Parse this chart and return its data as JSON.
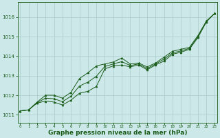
{
  "x": [
    0,
    1,
    2,
    3,
    4,
    5,
    6,
    7,
    8,
    9,
    10,
    11,
    12,
    13,
    14,
    15,
    16,
    17,
    18,
    19,
    20,
    21,
    22,
    23
  ],
  "line_bottom": [
    1011.2,
    1011.25,
    1011.6,
    1011.7,
    1011.65,
    1011.5,
    1011.75,
    1012.1,
    1012.2,
    1012.45,
    1013.35,
    1013.5,
    1013.55,
    1013.45,
    1013.55,
    1013.3,
    1013.55,
    1013.75,
    1014.1,
    1014.2,
    1014.35,
    1014.95,
    1015.75,
    1016.2
  ],
  "line_top": [
    1011.2,
    1011.25,
    1011.65,
    1012.0,
    1012.0,
    1011.85,
    1012.15,
    1012.85,
    1013.15,
    1013.5,
    1013.6,
    1013.7,
    1013.9,
    1013.6,
    1013.65,
    1013.45,
    1013.65,
    1013.95,
    1014.25,
    1014.35,
    1014.45,
    1015.05,
    1015.8,
    1016.2
  ],
  "line_mid": [
    1011.2,
    1011.25,
    1011.62,
    1011.85,
    1011.82,
    1011.67,
    1011.95,
    1012.47,
    1012.67,
    1012.97,
    1013.47,
    1013.6,
    1013.72,
    1013.52,
    1013.6,
    1013.37,
    1013.6,
    1013.85,
    1014.17,
    1014.27,
    1014.4,
    1015.0,
    1015.77,
    1016.2
  ],
  "bg_color": "#cce8e8",
  "grid_color": "#aacccc",
  "line_color": "#1a5c1a",
  "xlabel": "Graphe pression niveau de la mer (hPa)",
  "ylim_min": 1010.6,
  "ylim_max": 1016.75,
  "yticks": [
    1011,
    1012,
    1013,
    1014,
    1015,
    1016
  ],
  "xticks": [
    0,
    1,
    2,
    3,
    4,
    5,
    6,
    7,
    8,
    9,
    10,
    11,
    12,
    13,
    14,
    15,
    16,
    17,
    18,
    19,
    20,
    21,
    22,
    23
  ],
  "ytick_fontsize": 5,
  "xtick_fontsize": 4,
  "xlabel_fontsize": 6.5
}
